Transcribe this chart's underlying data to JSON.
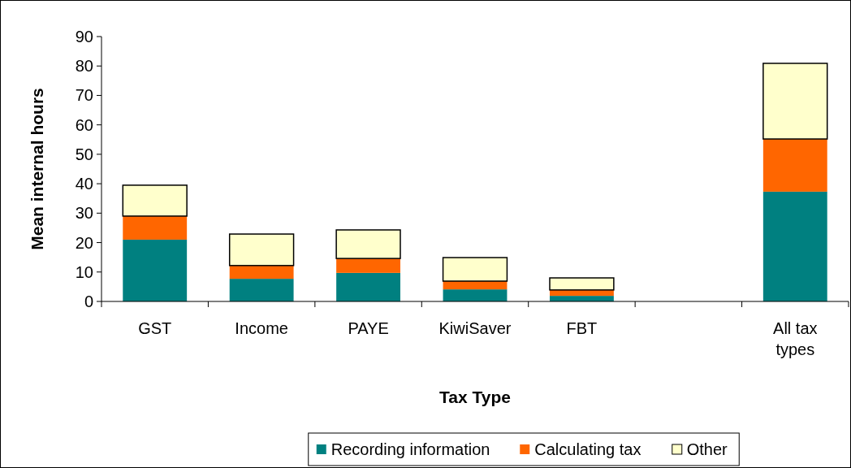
{
  "chart_data": {
    "type": "bar",
    "stacked": true,
    "xlabel": "Tax Type",
    "ylabel": "Mean internal hours",
    "categories": [
      "GST",
      "Income",
      "PAYE",
      "KiwiSaver",
      "FBT",
      null,
      "All tax types"
    ],
    "series": [
      {
        "name": "Recording information",
        "color": "#008080",
        "values": [
          21,
          7.7,
          9.7,
          4.1,
          1.9,
          null,
          37.3
        ]
      },
      {
        "name": "Calculating tax",
        "color": "#ff6600",
        "values": [
          8,
          4.5,
          4.9,
          2.8,
          2,
          null,
          17.9
        ]
      },
      {
        "name": "Other",
        "color": "#ffffcc",
        "values": [
          10.5,
          10.7,
          9.7,
          8,
          4.1,
          null,
          25.7
        ]
      }
    ],
    "ylim": [
      0,
      90
    ],
    "yticks": [
      0,
      10,
      20,
      30,
      40,
      50,
      60,
      70,
      80,
      90
    ],
    "grid": false,
    "legend": "bottom"
  }
}
